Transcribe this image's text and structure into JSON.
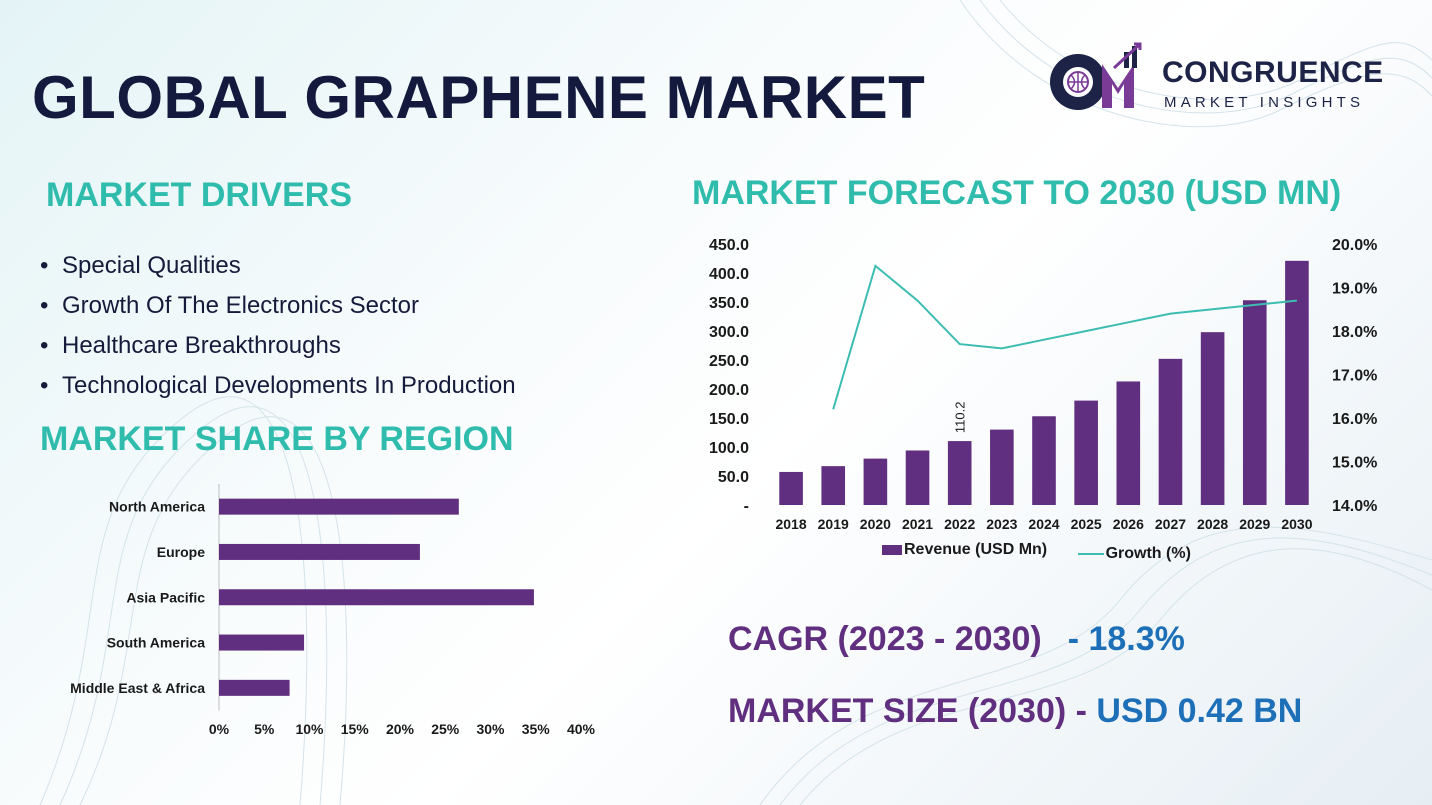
{
  "title": "GLOBAL GRAPHENE MARKET",
  "logo": {
    "name": "CONGRUENCE",
    "tagline": "MARKET INSIGHTS"
  },
  "drivers": {
    "heading": "MARKET DRIVERS",
    "items": [
      "Special Qualities",
      "Growth Of The Electronics Sector",
      "Healthcare Breakthroughs",
      "Technological Developments In Production"
    ]
  },
  "stats": {
    "cagr_label": "CAGR (2023 - 2030)",
    "cagr_value": "- 18.3%",
    "size_label": "MARKET SIZE (2030) -",
    "size_value": "USD 0.42 BN"
  },
  "colors": {
    "bar": "#612f7f",
    "line": "#3dbdb2",
    "heading": "#2fbcad",
    "title": "#141a3d",
    "value": "#1d6fb7"
  },
  "chart_data": [
    {
      "type": "bar+line",
      "title": "MARKET FORECAST TO 2030 (USD MN)",
      "categories": [
        "2018",
        "2019",
        "2020",
        "2021",
        "2022",
        "2023",
        "2024",
        "2025",
        "2026",
        "2027",
        "2028",
        "2029",
        "2030"
      ],
      "series": [
        {
          "name": "Revenue (USD Mn)",
          "type": "bar",
          "axis": "left",
          "values": [
            57,
            67,
            80,
            94,
            110.2,
            130,
            153,
            180,
            213,
            252,
            298,
            353,
            421
          ]
        },
        {
          "name": "Growth (%)",
          "type": "line",
          "axis": "right",
          "values": [
            null,
            16.2,
            19.5,
            18.7,
            17.7,
            17.6,
            17.8,
            18.0,
            18.2,
            18.4,
            18.5,
            18.6,
            18.7
          ]
        }
      ],
      "data_labels": [
        {
          "category": "2022",
          "text": "110.2"
        }
      ],
      "y_left": {
        "min": 0,
        "max": 450,
        "ticks": [
          "-",
          "50.0",
          "100.0",
          "150.0",
          "200.0",
          "250.0",
          "300.0",
          "350.0",
          "400.0",
          "450.0"
        ]
      },
      "y_right": {
        "min": 14,
        "max": 20,
        "ticks": [
          "14.0%",
          "15.0%",
          "16.0%",
          "17.0%",
          "18.0%",
          "19.0%",
          "20.0%"
        ]
      },
      "legend": [
        "Revenue (USD Mn)",
        "Growth (%)"
      ],
      "legend_position": "bottom"
    },
    {
      "type": "bar",
      "orientation": "horizontal",
      "title": "MARKET SHARE BY REGION",
      "categories": [
        "North America",
        "Europe",
        "Asia Pacific",
        "South America",
        "Middle East & Africa"
      ],
      "values": [
        26.5,
        22.2,
        34.8,
        9.4,
        7.8
      ],
      "x_range": [
        0,
        40
      ],
      "x_ticks": [
        "0%",
        "5%",
        "10%",
        "15%",
        "20%",
        "25%",
        "30%",
        "35%",
        "40%"
      ]
    }
  ]
}
